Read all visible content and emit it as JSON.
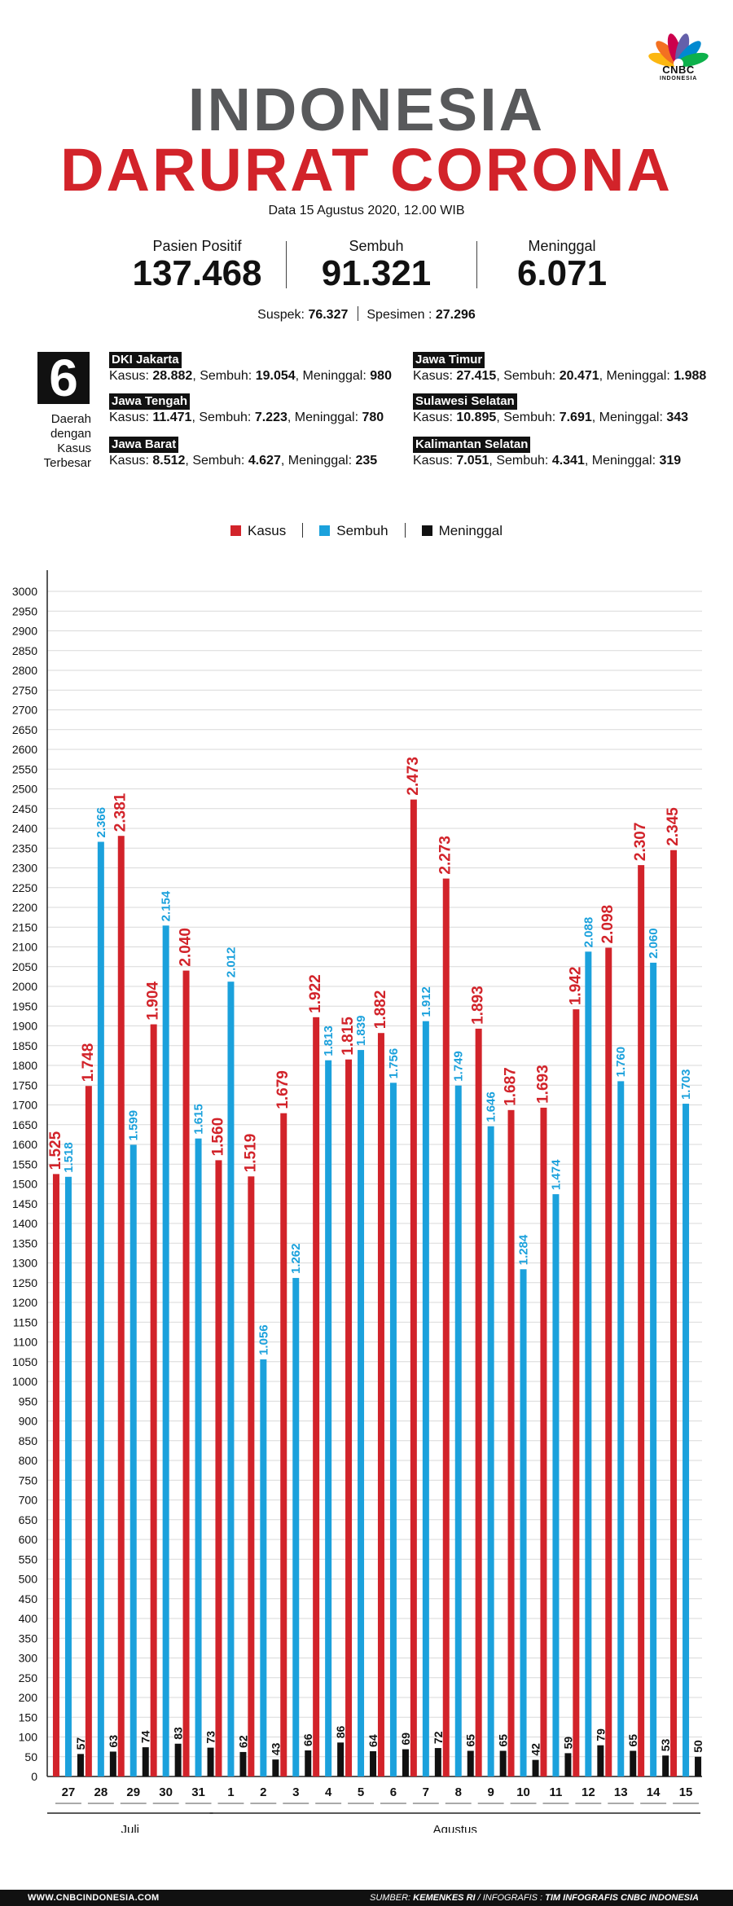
{
  "brand": {
    "logo_text": "CNBC",
    "logo_sub": "INDONESIA"
  },
  "header": {
    "title_line1": "INDONESIA",
    "title_line2": "DARURAT CORONA",
    "date": "Data 15 Agustus 2020, 12.00 WIB"
  },
  "stats": [
    {
      "label": "Pasien Positif",
      "value": "137.468"
    },
    {
      "label": "Sembuh",
      "value": "91.321"
    },
    {
      "label": "Meninggal",
      "value": "6.071"
    }
  ],
  "sub_stats": {
    "suspek_label": "Suspek:",
    "suspek": "76.327",
    "spesimen_label": "Spesimen :",
    "spesimen": "27.296"
  },
  "regions_box": {
    "count": "6",
    "caption": [
      "Daerah",
      "dengan",
      "Kasus",
      "Terbesar"
    ]
  },
  "regions": [
    {
      "name": "DKI Jakarta",
      "kasus": "28.882",
      "sembuh": "19.054",
      "meninggal": "980"
    },
    {
      "name": "Jawa Tengah",
      "kasus": "11.471",
      "sembuh": "7.223",
      "meninggal": "780"
    },
    {
      "name": "Jawa Barat",
      "kasus": "8.512",
      "sembuh": "4.627",
      "meninggal": "235"
    },
    {
      "name": "Jawa Timur",
      "kasus": "27.415",
      "sembuh": "20.471",
      "meninggal": "1.988"
    },
    {
      "name": "Sulawesi Selatan",
      "kasus": "10.895",
      "sembuh": "7.691",
      "meninggal": "343"
    },
    {
      "name": "Kalimantan Selatan",
      "kasus": "7.051",
      "sembuh": "4.341",
      "meninggal": "319"
    }
  ],
  "region_labels": {
    "kasus": "Kasus:",
    "sembuh": "Sembuh:",
    "meninggal": "Meninggal:"
  },
  "colors": {
    "kasus": "#d2232a",
    "sembuh": "#1ba1dc",
    "meninggal": "#111111",
    "title_gray": "#58595b"
  },
  "chart_data": {
    "type": "bar",
    "categories": [
      "27",
      "28",
      "29",
      "30",
      "31",
      "1",
      "2",
      "3",
      "4",
      "5",
      "6",
      "7",
      "8",
      "9",
      "10",
      "11",
      "12",
      "13",
      "14",
      "15"
    ],
    "month_groups": [
      {
        "label": "Juli",
        "from": 0,
        "to": 4
      },
      {
        "label": "Agustus",
        "from": 5,
        "to": 19
      }
    ],
    "series": [
      {
        "name": "Kasus",
        "color": "#d2232a",
        "values": [
          1525,
          1748,
          2381,
          1904,
          2040,
          1560,
          1519,
          1679,
          1922,
          1815,
          1882,
          2473,
          2273,
          1893,
          1687,
          1693,
          1942,
          2098,
          2307,
          2345
        ],
        "labels": [
          "1.525",
          "1.748",
          "2.381",
          "1.904",
          "2.040",
          "1.560",
          "1.519",
          "1.679",
          "1.922",
          "1.815",
          "1.882",
          "2.473",
          "2.273",
          "1.893",
          "1.687",
          "1.693",
          "1.942",
          "2.098",
          "2.307",
          "2.345"
        ]
      },
      {
        "name": "Sembuh",
        "color": "#1ba1dc",
        "values": [
          1518,
          2366,
          1599,
          2154,
          1615,
          2012,
          1056,
          1262,
          1813,
          1839,
          1756,
          1912,
          1749,
          1646,
          1284,
          1474,
          2088,
          1760,
          2060,
          1703
        ],
        "labels": [
          "1.518",
          "2.366",
          "1.599",
          "2.154",
          "1.615",
          "2.012",
          "1.056",
          "1.262",
          "1.813",
          "1.839",
          "1.756",
          "1.912",
          "1.749",
          "1.646",
          "1.284",
          "1.474",
          "2.088",
          "1.760",
          "2.060",
          "1.703"
        ]
      },
      {
        "name": "Meninggal",
        "color": "#111111",
        "values": [
          57,
          63,
          74,
          83,
          73,
          62,
          43,
          66,
          86,
          64,
          69,
          72,
          65,
          65,
          42,
          59,
          79,
          65,
          53,
          50
        ],
        "labels": [
          "57",
          "63",
          "74",
          "83",
          "73",
          "62",
          "43",
          "66",
          "86",
          "64",
          "69",
          "72",
          "65",
          "65",
          "42",
          "59",
          "79",
          "65",
          "53",
          "50"
        ]
      }
    ],
    "ylim": [
      0,
      3000
    ],
    "yticks": [
      0,
      50,
      100,
      150,
      200,
      250,
      300,
      350,
      400,
      450,
      500,
      550,
      600,
      650,
      700,
      750,
      800,
      850,
      900,
      950,
      1000,
      1050,
      1100,
      1150,
      1200,
      1250,
      1300,
      1350,
      1400,
      1450,
      1500,
      1550,
      1600,
      1650,
      1700,
      1750,
      1800,
      1850,
      1900,
      1950,
      2000,
      2050,
      2100,
      2150,
      2200,
      2250,
      2300,
      2350,
      2400,
      2450,
      2500,
      2550,
      2600,
      2650,
      2700,
      2750,
      2800,
      2850,
      2900,
      2950,
      3000
    ],
    "grid": true,
    "legend": "top-center"
  },
  "footer": {
    "site": "WWW.CNBCINDONESIA.COM",
    "source_label": "SUMBER:",
    "source": "KEMENKES RI",
    "infographic_label": "/ INFOGRAFIS :",
    "infographic": "TIM INFOGRAFIS CNBC INDONESIA"
  }
}
